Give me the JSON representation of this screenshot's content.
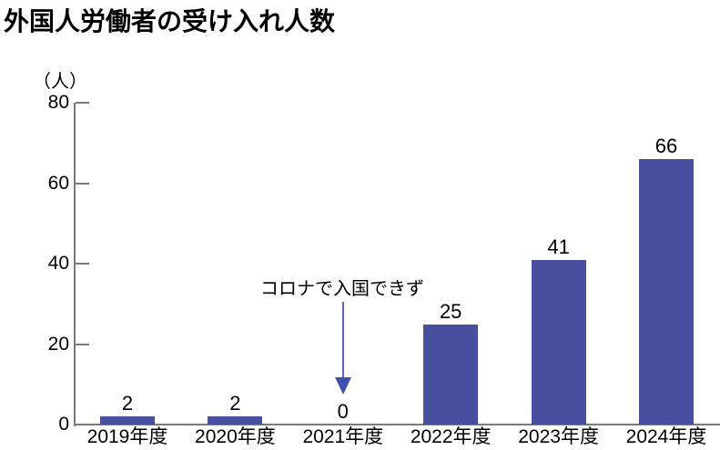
{
  "page": {
    "title": "外国人労働者の受け入れ人数"
  },
  "chart_data": {
    "type": "bar",
    "title": "外国人労働者の受け入れ人数",
    "unit_label": "（人）",
    "categories": [
      "2019年度",
      "2020年度",
      "2021年度",
      "2022年度",
      "2023年度",
      "2024年度"
    ],
    "values": [
      2,
      2,
      0,
      25,
      41,
      66
    ],
    "bar_value_labels": [
      "2",
      "2",
      "0",
      "25",
      "41",
      "66"
    ],
    "xlabel": "",
    "ylabel": "（人）",
    "ylim": [
      0,
      80
    ],
    "yticks": [
      0,
      20,
      40,
      60,
      80
    ],
    "grid": false,
    "legend": false,
    "annotation": {
      "text": "コロナで入国できず",
      "target_category": "2021年度",
      "arrow_direction": "down"
    }
  },
  "colors": {
    "bar": "#46509e",
    "arrow_line": "#5766be",
    "arrow_head": "#4150a8",
    "axis": "#7a7a7a",
    "text": "#000000",
    "background": "#ffffff"
  }
}
